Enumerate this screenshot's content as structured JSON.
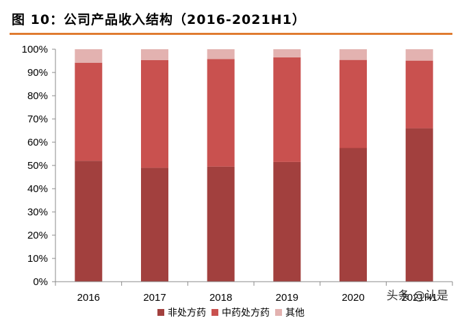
{
  "figure_title": "图 10：公司产品收入结构（2016-2021H1）",
  "watermark": "头条 @认是",
  "colors": {
    "rule": "#e07b2f"
  },
  "chart_data": {
    "type": "bar",
    "stacked": true,
    "percent": true,
    "categories": [
      "2016",
      "2017",
      "2018",
      "2019",
      "2020",
      "2021H1"
    ],
    "series": [
      {
        "name": "非处方药",
        "color": "#a2403e",
        "values": [
          52,
          49,
          49.5,
          51.5,
          57.5,
          66
        ]
      },
      {
        "name": "中药处方药",
        "color": "#c9514f",
        "values": [
          42.2,
          46.3,
          46.3,
          45,
          37.9,
          29.1
        ]
      },
      {
        "name": "其他",
        "color": "#e3b2b0",
        "values": [
          5.8,
          4.7,
          4.2,
          3.5,
          4.6,
          4.9
        ]
      }
    ],
    "ylim": [
      0,
      100
    ],
    "yticks": [
      "0%",
      "10%",
      "20%",
      "30%",
      "40%",
      "50%",
      "60%",
      "70%",
      "80%",
      "90%",
      "100%"
    ],
    "grid": false,
    "legend": "bottom"
  }
}
